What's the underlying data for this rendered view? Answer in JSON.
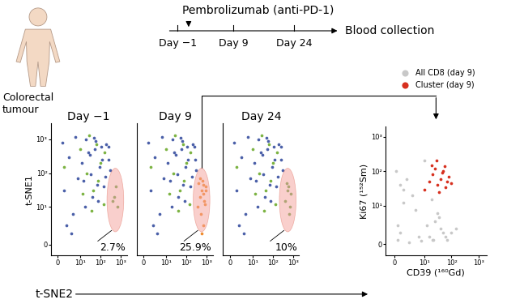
{
  "diagram": {
    "subject": "Colorectal\ntumour",
    "timeline": {
      "treatment": "Pembrolizumab (anti-PD-1)",
      "days": [
        "Day −1",
        "Day 9",
        "Day 24"
      ],
      "end_label": "Blood collection"
    },
    "tsne_xlabel": "t-SNE2"
  },
  "chart_data": [
    {
      "type": "scatter",
      "title": "Day −1",
      "annotation": "2.7%",
      "ylabel": "t-SNE1",
      "log": true,
      "xlim": [
        -3,
        2000
      ],
      "ylim": [
        -3,
        3000
      ],
      "xticks": [
        0,
        {
          "value": 10,
          "label": "10¹"
        },
        {
          "value": 100,
          "label": "10²"
        },
        {
          "value": 1000,
          "label": "10³"
        }
      ],
      "yticks": [
        0,
        {
          "value": 10,
          "label": "10¹"
        },
        {
          "value": 100,
          "label": "10²"
        },
        {
          "value": 1000,
          "label": "10³"
        }
      ],
      "series": [
        {
          "color": "#4a5fa8",
          "x": [
            2,
            5,
            8,
            15,
            25,
            40,
            60,
            90,
            150,
            250,
            3,
            7,
            12,
            20,
            35,
            55,
            80,
            120,
            200,
            300,
            4,
            9,
            18,
            30,
            50,
            70,
            110,
            180,
            260,
            6
          ],
          "y": [
            800,
            300,
            1200,
            60,
            400,
            20,
            900,
            150,
            40,
            600,
            30,
            8,
            200,
            1000,
            90,
            500,
            15,
            250,
            700,
            120,
            5,
            70,
            10,
            350,
            1100,
            45,
            600,
            80,
            250,
            3
          ]
        },
        {
          "color": "#7cb342",
          "x": [
            10,
            22,
            45,
            65,
            100,
            140,
            3,
            28,
            75,
            160,
            14,
            38
          ],
          "y": [
            500,
            100,
            30,
            700,
            200,
            12,
            150,
            1300,
            60,
            400,
            25,
            9
          ]
        },
        {
          "color": "#6aa84f",
          "x": [
            500,
            700,
            600,
            400
          ],
          "y": [
            20,
            10,
            40,
            15
          ]
        }
      ]
    },
    {
      "type": "scatter",
      "title": "Day 9",
      "annotation": "25.9%",
      "log": true,
      "tick_labels": "x",
      "xlim": [
        -3,
        2000
      ],
      "ylim": [
        -3,
        3000
      ],
      "xticks": [
        0,
        {
          "value": 10,
          "label": "10¹"
        },
        {
          "value": 100,
          "label": "10²"
        },
        {
          "value": 1000,
          "label": "10³"
        }
      ],
      "series": [
        {
          "color": "#4a5fa8",
          "x": [
            2,
            5,
            8,
            15,
            25,
            40,
            60,
            90,
            150,
            250,
            3,
            7,
            12,
            20,
            35,
            55,
            80,
            120,
            200,
            300,
            4,
            9,
            18,
            30,
            50,
            70,
            110,
            180,
            260,
            6
          ],
          "y": [
            800,
            300,
            1200,
            60,
            400,
            20,
            900,
            150,
            40,
            600,
            30,
            8,
            200,
            1000,
            90,
            500,
            15,
            250,
            700,
            120,
            5,
            70,
            10,
            350,
            1100,
            45,
            600,
            80,
            250,
            3
          ]
        },
        {
          "color": "#7cb342",
          "x": [
            10,
            22,
            45,
            65,
            100,
            140,
            3,
            28,
            75,
            160,
            14,
            38
          ],
          "y": [
            500,
            100,
            30,
            700,
            200,
            12,
            150,
            1300,
            60,
            400,
            25,
            9
          ]
        },
        {
          "color": "#f08c2e",
          "x": [
            350,
            450,
            550,
            650,
            750,
            850,
            400,
            500,
            600,
            700,
            800,
            450,
            550,
            650,
            900
          ],
          "y": [
            10,
            20,
            30,
            5,
            15,
            40,
            50,
            8,
            60,
            25,
            12,
            70,
            3,
            45,
            30
          ]
        }
      ]
    },
    {
      "type": "scatter",
      "title": "Day 24",
      "annotation": "10%",
      "log": true,
      "tick_labels": "x",
      "xlim": [
        -3,
        2000
      ],
      "ylim": [
        -3,
        3000
      ],
      "xticks": [
        0,
        {
          "value": 10,
          "label": "10¹"
        },
        {
          "value": 100,
          "label": "10²"
        },
        {
          "value": 1000,
          "label": "10³"
        }
      ],
      "series": [
        {
          "color": "#4a5fa8",
          "x": [
            2,
            5,
            8,
            15,
            25,
            40,
            60,
            90,
            150,
            250,
            3,
            7,
            12,
            20,
            35,
            55,
            80,
            120,
            200,
            300,
            4,
            9,
            18,
            30,
            50,
            70,
            110,
            180,
            260,
            6
          ],
          "y": [
            800,
            300,
            1200,
            60,
            400,
            20,
            900,
            150,
            40,
            600,
            30,
            8,
            200,
            1000,
            90,
            500,
            15,
            250,
            700,
            120,
            5,
            70,
            10,
            350,
            1100,
            45,
            600,
            80,
            250,
            3
          ]
        },
        {
          "color": "#7cb342",
          "x": [
            10,
            22,
            45,
            65,
            100,
            140,
            3,
            28,
            75,
            160,
            14,
            38
          ],
          "y": [
            500,
            100,
            30,
            700,
            200,
            12,
            150,
            1300,
            60,
            400,
            25,
            9
          ]
        },
        {
          "color": "#6aa84f",
          "x": [
            400,
            550,
            700,
            800,
            500,
            650,
            600
          ],
          "y": [
            15,
            30,
            10,
            25,
            50,
            8,
            40
          ]
        }
      ]
    },
    {
      "type": "scatter",
      "xlabel": "CD39 (¹⁶⁰Gd)",
      "ylabel": "Ki67 (¹⁵²Sm)",
      "log": true,
      "legend": "upper center",
      "xlim": [
        -3,
        2000
      ],
      "ylim": [
        -3,
        2000
      ],
      "xticks": [
        0,
        {
          "value": 10,
          "label": "10¹"
        },
        {
          "value": 100,
          "label": "10²"
        },
        {
          "value": 1000,
          "label": "10³"
        }
      ],
      "yticks": [
        0,
        {
          "value": 10,
          "label": "10¹"
        },
        {
          "value": 100,
          "label": "10²"
        },
        {
          "value": 1000,
          "label": "10³"
        }
      ],
      "series": [
        {
          "name": "All CD8 (day 9)",
          "color": "#c8c8c8",
          "x": [
            1,
            2,
            5,
            8,
            12,
            20,
            30,
            50,
            3,
            6,
            15,
            25,
            40,
            70,
            100,
            2,
            4,
            9,
            18,
            35,
            60,
            0.5,
            1,
            3,
            7,
            150,
            10,
            22
          ],
          "y": [
            1,
            3,
            0.5,
            2,
            5,
            1,
            8,
            3,
            12,
            20,
            2,
            6,
            4,
            1,
            3,
            40,
            60,
            0.8,
            15,
            7,
            2,
            100,
            5,
            30,
            9,
            4,
            200,
            1
          ]
        },
        {
          "name": "Cluster (day 9)",
          "color": "#d7301f",
          "x": [
            10,
            15,
            20,
            30,
            40,
            50,
            60,
            80,
            25,
            35,
            45,
            70,
            100,
            18,
            28,
            55
          ],
          "y": [
            30,
            50,
            80,
            40,
            60,
            100,
            35,
            70,
            120,
            25,
            90,
            50,
            45,
            150,
            200,
            140
          ]
        }
      ]
    }
  ]
}
